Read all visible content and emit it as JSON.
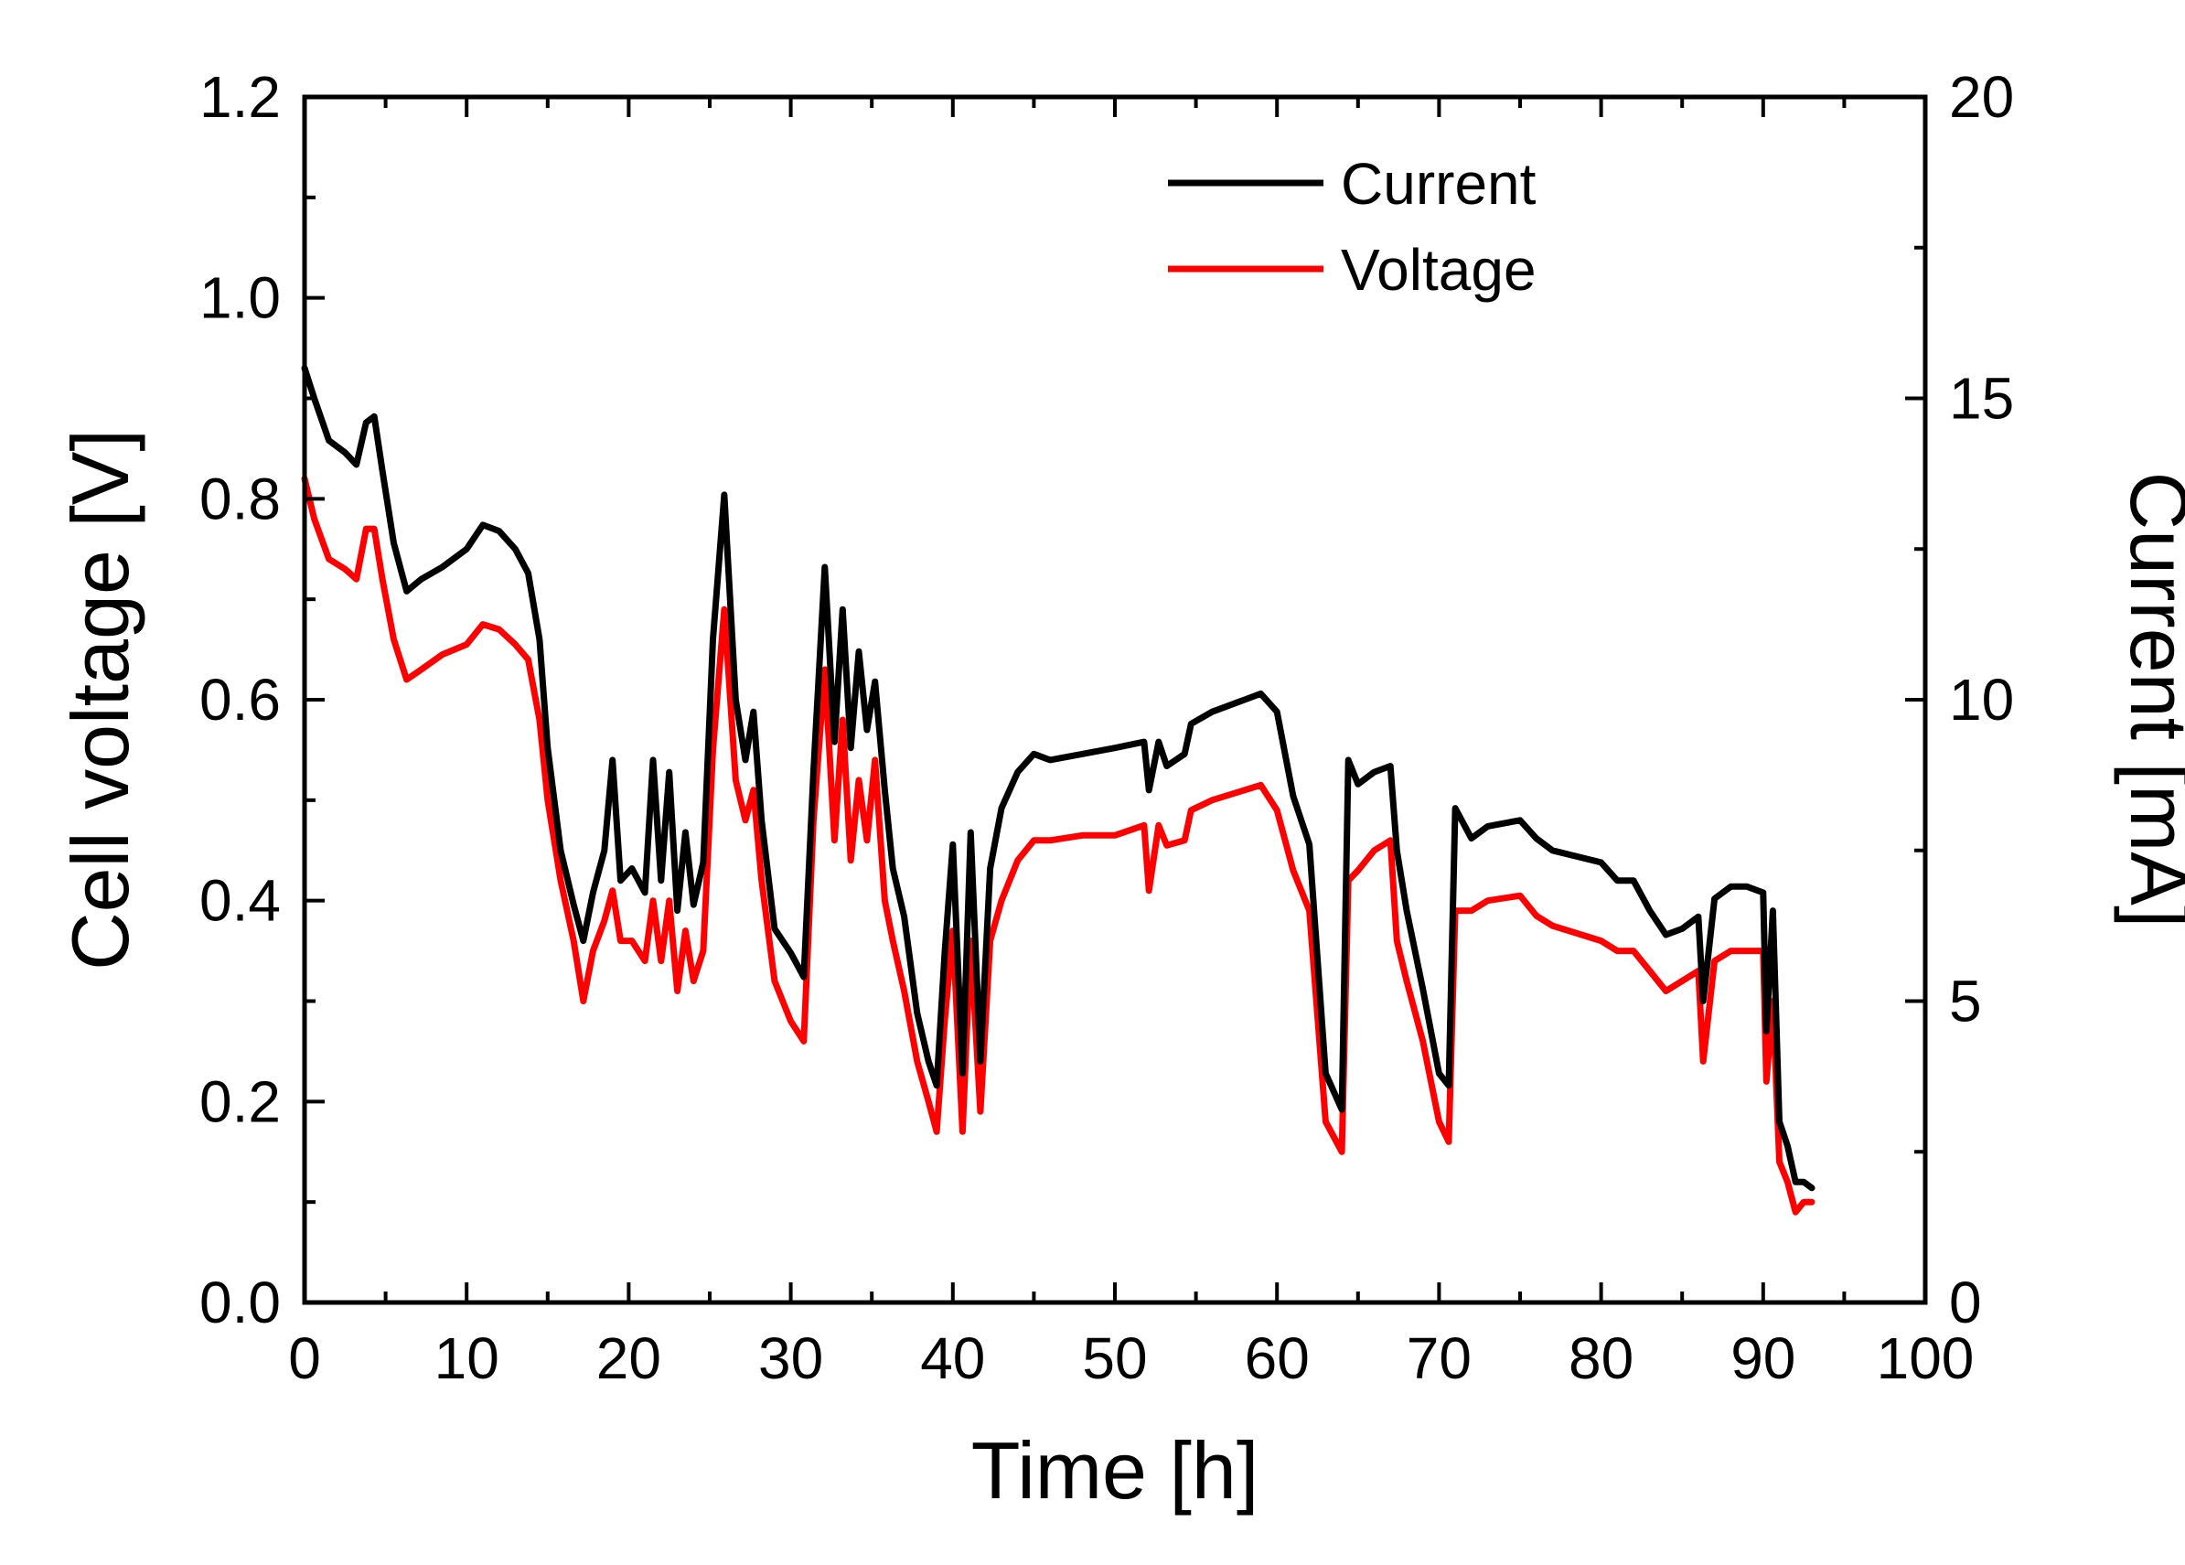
{
  "chart_data": {
    "type": "line",
    "xlabel": "Time [h]",
    "ylabel": "Cell voltage [V]",
    "y2label": "Current [mA]",
    "xlim": [
      0,
      100
    ],
    "ylim": [
      0,
      1.2
    ],
    "y2lim": [
      0,
      20
    ],
    "xticks": [
      "0",
      "10",
      "20",
      "30",
      "40",
      "50",
      "60",
      "70",
      "80",
      "90",
      "100"
    ],
    "yticks": [
      "0.0",
      "0.2",
      "0.4",
      "0.6",
      "0.8",
      "1.0",
      "1.2"
    ],
    "y2ticks": [
      "0",
      "5",
      "10",
      "15",
      "20"
    ],
    "legend_position": "top-center",
    "grid": false,
    "series": [
      {
        "name": "Current",
        "axis": "right",
        "color": "#000000",
        "points": [
          [
            0,
            15.5
          ],
          [
            0.6,
            15.0
          ],
          [
            1.5,
            14.3
          ],
          [
            2.5,
            14.1
          ],
          [
            3.2,
            13.9
          ],
          [
            3.8,
            14.6
          ],
          [
            4.3,
            14.7
          ],
          [
            4.8,
            13.8
          ],
          [
            5.5,
            12.6
          ],
          [
            6.3,
            11.8
          ],
          [
            7.2,
            12.0
          ],
          [
            8.5,
            12.2
          ],
          [
            10,
            12.5
          ],
          [
            11,
            12.9
          ],
          [
            12,
            12.8
          ],
          [
            13,
            12.5
          ],
          [
            13.8,
            12.1
          ],
          [
            14.5,
            11.0
          ],
          [
            15,
            9.2
          ],
          [
            15.8,
            7.5
          ],
          [
            16.6,
            6.6
          ],
          [
            17.2,
            6.0
          ],
          [
            17.8,
            6.8
          ],
          [
            18.5,
            7.5
          ],
          [
            19,
            9.0
          ],
          [
            19.5,
            7.0
          ],
          [
            20.2,
            7.2
          ],
          [
            21,
            6.8
          ],
          [
            21.5,
            9.0
          ],
          [
            22,
            7.0
          ],
          [
            22.5,
            8.8
          ],
          [
            23,
            6.5
          ],
          [
            23.5,
            7.8
          ],
          [
            24,
            6.6
          ],
          [
            24.6,
            7.3
          ],
          [
            25.2,
            11.0
          ],
          [
            25.9,
            13.4
          ],
          [
            26.6,
            10.0
          ],
          [
            27.2,
            9.0
          ],
          [
            27.7,
            9.8
          ],
          [
            28.2,
            8.0
          ],
          [
            29,
            6.2
          ],
          [
            30,
            5.8
          ],
          [
            30.8,
            5.4
          ],
          [
            31.4,
            8.8
          ],
          [
            32.1,
            12.2
          ],
          [
            32.7,
            9.3
          ],
          [
            33.2,
            11.5
          ],
          [
            33.7,
            9.2
          ],
          [
            34.2,
            10.8
          ],
          [
            34.7,
            9.5
          ],
          [
            35.2,
            10.3
          ],
          [
            35.8,
            8.5
          ],
          [
            36.3,
            7.2
          ],
          [
            37,
            6.4
          ],
          [
            37.8,
            4.8
          ],
          [
            38.5,
            4.0
          ],
          [
            39,
            3.6
          ],
          [
            39.5,
            5.8
          ],
          [
            40,
            7.6
          ],
          [
            40.6,
            3.8
          ],
          [
            41.1,
            7.8
          ],
          [
            41.7,
            4.0
          ],
          [
            42.3,
            7.2
          ],
          [
            43,
            8.2
          ],
          [
            44,
            8.8
          ],
          [
            45,
            9.1
          ],
          [
            46,
            9.0
          ],
          [
            48,
            9.1
          ],
          [
            50,
            9.2
          ],
          [
            51.8,
            9.3
          ],
          [
            52.1,
            8.5
          ],
          [
            52.7,
            9.3
          ],
          [
            53.2,
            8.9
          ],
          [
            54.3,
            9.1
          ],
          [
            54.7,
            9.6
          ],
          [
            56,
            9.8
          ],
          [
            58,
            10.0
          ],
          [
            59,
            10.1
          ],
          [
            60,
            9.8
          ],
          [
            61,
            8.4
          ],
          [
            62,
            7.6
          ],
          [
            63,
            3.8
          ],
          [
            64,
            3.2
          ],
          [
            64.4,
            9.0
          ],
          [
            65,
            8.6
          ],
          [
            66,
            8.8
          ],
          [
            67,
            8.9
          ],
          [
            67.4,
            7.5
          ],
          [
            68,
            6.5
          ],
          [
            69,
            5.2
          ],
          [
            70,
            3.8
          ],
          [
            70.6,
            3.6
          ],
          [
            71,
            8.2
          ],
          [
            72,
            7.7
          ],
          [
            73,
            7.9
          ],
          [
            75,
            8.0
          ],
          [
            76,
            7.7
          ],
          [
            77,
            7.5
          ],
          [
            80,
            7.3
          ],
          [
            81,
            7.0
          ],
          [
            82,
            7.0
          ],
          [
            83,
            6.5
          ],
          [
            84,
            6.1
          ],
          [
            85,
            6.2
          ],
          [
            86,
            6.4
          ],
          [
            86.3,
            5.0
          ],
          [
            87,
            6.7
          ],
          [
            88,
            6.9
          ],
          [
            89,
            6.9
          ],
          [
            90,
            6.8
          ],
          [
            90.2,
            4.5
          ],
          [
            90.6,
            6.5
          ],
          [
            91,
            3.0
          ],
          [
            91.5,
            2.6
          ],
          [
            92,
            2.0
          ],
          [
            92.5,
            2.0
          ],
          [
            93,
            1.9
          ]
        ]
      },
      {
        "name": "Voltage",
        "axis": "left",
        "color": "#ff0000",
        "points": [
          [
            0,
            0.82
          ],
          [
            0.6,
            0.78
          ],
          [
            1.5,
            0.74
          ],
          [
            2.5,
            0.73
          ],
          [
            3.2,
            0.72
          ],
          [
            3.8,
            0.77
          ],
          [
            4.3,
            0.77
          ],
          [
            4.8,
            0.72
          ],
          [
            5.5,
            0.66
          ],
          [
            6.3,
            0.62
          ],
          [
            7.2,
            0.63
          ],
          [
            8.5,
            0.645
          ],
          [
            10,
            0.655
          ],
          [
            11,
            0.675
          ],
          [
            12,
            0.67
          ],
          [
            13,
            0.655
          ],
          [
            13.8,
            0.64
          ],
          [
            14.5,
            0.58
          ],
          [
            15,
            0.5
          ],
          [
            15.8,
            0.42
          ],
          [
            16.6,
            0.36
          ],
          [
            17.2,
            0.3
          ],
          [
            17.8,
            0.35
          ],
          [
            18.5,
            0.38
          ],
          [
            19,
            0.41
          ],
          [
            19.5,
            0.36
          ],
          [
            20.2,
            0.36
          ],
          [
            21,
            0.34
          ],
          [
            21.5,
            0.4
          ],
          [
            22,
            0.34
          ],
          [
            22.5,
            0.4
          ],
          [
            23,
            0.31
          ],
          [
            23.5,
            0.37
          ],
          [
            24,
            0.32
          ],
          [
            24.6,
            0.35
          ],
          [
            25.2,
            0.55
          ],
          [
            25.9,
            0.69
          ],
          [
            26.6,
            0.52
          ],
          [
            27.2,
            0.48
          ],
          [
            27.7,
            0.51
          ],
          [
            28.2,
            0.42
          ],
          [
            29,
            0.32
          ],
          [
            30,
            0.28
          ],
          [
            30.8,
            0.26
          ],
          [
            31.4,
            0.48
          ],
          [
            32.1,
            0.63
          ],
          [
            32.7,
            0.46
          ],
          [
            33.2,
            0.58
          ],
          [
            33.7,
            0.44
          ],
          [
            34.2,
            0.52
          ],
          [
            34.7,
            0.46
          ],
          [
            35.2,
            0.54
          ],
          [
            35.8,
            0.4
          ],
          [
            36.3,
            0.36
          ],
          [
            37,
            0.31
          ],
          [
            37.8,
            0.24
          ],
          [
            38.5,
            0.2
          ],
          [
            39,
            0.17
          ],
          [
            39.5,
            0.28
          ],
          [
            40,
            0.37
          ],
          [
            40.6,
            0.17
          ],
          [
            41.1,
            0.36
          ],
          [
            41.7,
            0.19
          ],
          [
            42.3,
            0.36
          ],
          [
            43,
            0.4
          ],
          [
            44,
            0.44
          ],
          [
            45,
            0.46
          ],
          [
            46,
            0.46
          ],
          [
            48,
            0.465
          ],
          [
            50,
            0.465
          ],
          [
            51.8,
            0.475
          ],
          [
            52.1,
            0.41
          ],
          [
            52.7,
            0.475
          ],
          [
            53.2,
            0.455
          ],
          [
            54.3,
            0.46
          ],
          [
            54.7,
            0.49
          ],
          [
            56,
            0.5
          ],
          [
            58,
            0.51
          ],
          [
            59,
            0.515
          ],
          [
            60,
            0.49
          ],
          [
            61,
            0.43
          ],
          [
            62,
            0.39
          ],
          [
            63,
            0.18
          ],
          [
            64,
            0.15
          ],
          [
            64.4,
            0.42
          ],
          [
            65,
            0.43
          ],
          [
            66,
            0.45
          ],
          [
            67,
            0.46
          ],
          [
            67.4,
            0.36
          ],
          [
            68,
            0.32
          ],
          [
            69,
            0.26
          ],
          [
            70,
            0.18
          ],
          [
            70.6,
            0.16
          ],
          [
            71,
            0.39
          ],
          [
            72,
            0.39
          ],
          [
            73,
            0.4
          ],
          [
            75,
            0.405
          ],
          [
            76,
            0.385
          ],
          [
            77,
            0.375
          ],
          [
            80,
            0.36
          ],
          [
            81,
            0.35
          ],
          [
            82,
            0.35
          ],
          [
            83,
            0.33
          ],
          [
            84,
            0.31
          ],
          [
            85,
            0.32
          ],
          [
            86,
            0.33
          ],
          [
            86.3,
            0.24
          ],
          [
            87,
            0.34
          ],
          [
            88,
            0.35
          ],
          [
            89,
            0.35
          ],
          [
            90,
            0.35
          ],
          [
            90.2,
            0.22
          ],
          [
            90.6,
            0.3
          ],
          [
            91,
            0.14
          ],
          [
            91.5,
            0.12
          ],
          [
            92,
            0.09
          ],
          [
            92.5,
            0.1
          ],
          [
            93,
            0.1
          ]
        ]
      }
    ]
  }
}
